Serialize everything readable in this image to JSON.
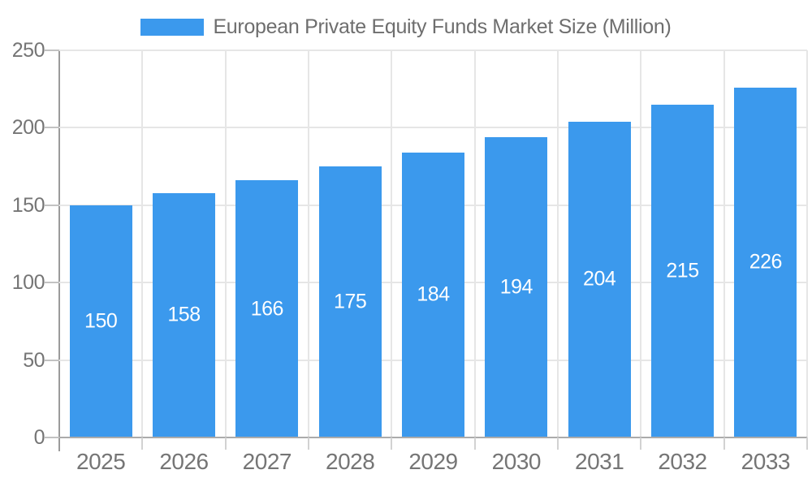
{
  "chart_data": {
    "type": "bar",
    "title": "European Private Equity Funds Market Size (Million)",
    "legend": {
      "position": "top",
      "items": [
        {
          "label": "European Private Equity Funds Market Size (Million)",
          "color": "#3b99ed"
        }
      ]
    },
    "categories": [
      "2025",
      "2026",
      "2027",
      "2028",
      "2029",
      "2030",
      "2031",
      "2032",
      "2033"
    ],
    "values": [
      150,
      158,
      166,
      175,
      184,
      194,
      204,
      215,
      226
    ],
    "xlabel": "",
    "ylabel": "",
    "ylim": [
      0,
      250
    ],
    "y_ticks": [
      0,
      50,
      100,
      150,
      200,
      250
    ],
    "grid": "on",
    "value_labels_position": "inside-center",
    "colors": {
      "bar": "#3b99ed",
      "value_label": "#ffffff",
      "axis_label": "#757575",
      "legend_text": "#6e6e6e",
      "grid_line": "#e6e6e6",
      "baseline": "#ababab",
      "axis_line": "#9b9b9b",
      "y_tick_mark": "#c2c2c2",
      "x_tick_mark": "#d2d2d2",
      "background": "#ffffff"
    }
  }
}
